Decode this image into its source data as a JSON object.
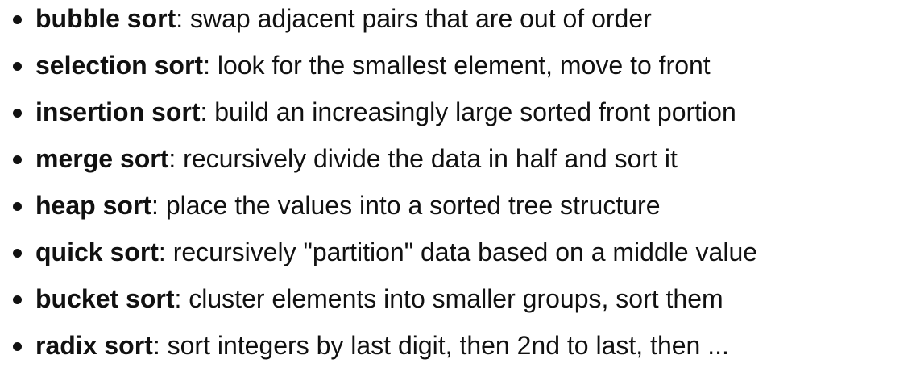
{
  "items": [
    {
      "term": "bubble sort",
      "sep": ":",
      "desc": " swap adjacent pairs that are out of order"
    },
    {
      "term": "selection sort",
      "sep": ":",
      "desc": " look for the smallest element, move to front"
    },
    {
      "term": "insertion sort",
      "sep": ":",
      "desc": " build an increasingly large sorted front portion"
    },
    {
      "term": "merge sort",
      "sep": ":",
      "desc": " recursively divide the data in half and sort it"
    },
    {
      "term": "heap sort",
      "sep": ":",
      "desc": " place the values into a sorted tree structure"
    },
    {
      "term": "quick sort",
      "sep": ":",
      "desc": " recursively \"partition\" data based on a middle value"
    },
    {
      "term": "bucket sort",
      "sep": ":",
      "desc": " cluster elements into smaller groups, sort them"
    },
    {
      "term": "radix sort",
      "sep": ":",
      "desc": " sort integers by last digit, then 2nd to last, then ..."
    }
  ],
  "colors": {
    "text": "#111111",
    "background": "#ffffff"
  }
}
